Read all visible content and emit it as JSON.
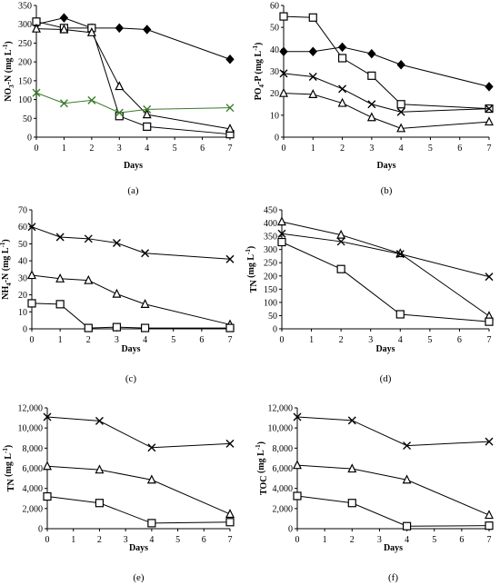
{
  "chart_data": [
    {
      "type": "line",
      "caption": "(a)",
      "xlabel": "Days",
      "ylabel": "NO3-N (mg L-1)",
      "ylabel_main": "NO",
      "ylabel_sub": "3",
      "ylabel_mid": "-N (mg L",
      "ylabel_sup": "-1",
      "ylabel_end": ")",
      "xlim": [
        0,
        7
      ],
      "ylim": [
        0,
        350
      ],
      "xticks": [
        0,
        1,
        2,
        3,
        4,
        5,
        6,
        7
      ],
      "yticks": [
        0,
        50,
        100,
        150,
        200,
        250,
        300,
        350
      ],
      "ytick_labels": [
        "0",
        "50",
        "100",
        "150",
        "200",
        "250",
        "300",
        "350"
      ],
      "series": [
        {
          "marker": "diamond",
          "color": "#000000",
          "x": [
            0,
            1,
            2,
            3,
            4,
            7
          ],
          "y": [
            300,
            317,
            290,
            290,
            286,
            207
          ]
        },
        {
          "marker": "square",
          "color": "#000000",
          "x": [
            0,
            1,
            2,
            3,
            4,
            7
          ],
          "y": [
            307,
            290,
            290,
            56,
            28,
            8
          ]
        },
        {
          "marker": "triangle",
          "color": "#000000",
          "x": [
            0,
            1,
            2,
            3,
            4,
            7
          ],
          "y": [
            288,
            286,
            278,
            135,
            60,
            22
          ]
        },
        {
          "marker": "x",
          "color": "#3a7a28",
          "x": [
            0,
            1,
            2,
            3,
            4,
            7
          ],
          "y": [
            118,
            90,
            98,
            65,
            74,
            78
          ]
        }
      ]
    },
    {
      "type": "line",
      "caption": "(b)",
      "xlabel": "Days",
      "ylabel": "PO4-P (mg L-1)",
      "ylabel_main": "PO",
      "ylabel_sub": "4",
      "ylabel_mid": "-P (mg L",
      "ylabel_sup": "-1",
      "ylabel_end": ")",
      "xlim": [
        0,
        7
      ],
      "ylim": [
        0,
        60
      ],
      "xticks": [
        0,
        1,
        2,
        3,
        4,
        5,
        6,
        7
      ],
      "yticks": [
        0,
        10,
        20,
        30,
        40,
        50,
        60
      ],
      "ytick_labels": [
        "0",
        "10",
        "20",
        "30",
        "40",
        "50",
        "60"
      ],
      "series": [
        {
          "marker": "square",
          "color": "#000000",
          "x": [
            0,
            1,
            2,
            3,
            4,
            7
          ],
          "y": [
            55,
            54.5,
            36,
            28,
            15,
            13
          ]
        },
        {
          "marker": "diamond",
          "color": "#000000",
          "x": [
            0,
            1,
            2,
            3,
            4,
            7
          ],
          "y": [
            39,
            39,
            41,
            38,
            33,
            23
          ]
        },
        {
          "marker": "x",
          "color": "#000000",
          "x": [
            0,
            1,
            2,
            3,
            4,
            7
          ],
          "y": [
            29,
            27.5,
            22,
            15,
            11.5,
            13
          ]
        },
        {
          "marker": "triangle",
          "color": "#000000",
          "x": [
            0,
            1,
            2,
            3,
            4,
            7
          ],
          "y": [
            20,
            19.5,
            15.5,
            9,
            4,
            7
          ]
        }
      ]
    },
    {
      "type": "line",
      "caption": "(c)",
      "xlabel": "Days",
      "ylabel": "NH4-N (mg L-1)",
      "ylabel_main": "NH",
      "ylabel_sub": "4",
      "ylabel_mid": "-N (mg L",
      "ylabel_sup": "-1",
      "ylabel_end": ")",
      "xlim": [
        0,
        7
      ],
      "ylim": [
        0,
        70
      ],
      "xticks": [
        0,
        1,
        2,
        3,
        4,
        5,
        6,
        7
      ],
      "yticks": [
        0,
        10,
        20,
        30,
        40,
        50,
        60,
        70
      ],
      "ytick_labels": [
        "0",
        "10",
        "20",
        "30",
        "40",
        "50",
        "60",
        "70"
      ],
      "series": [
        {
          "marker": "x",
          "color": "#000000",
          "x": [
            0,
            1,
            2,
            3,
            4,
            7
          ],
          "y": [
            60,
            54,
            53,
            50.5,
            44.5,
            41
          ]
        },
        {
          "marker": "triangle",
          "color": "#000000",
          "x": [
            0,
            1,
            2,
            3,
            4,
            7
          ],
          "y": [
            31.5,
            29.5,
            28.5,
            20.5,
            14.5,
            2.5
          ]
        },
        {
          "marker": "square",
          "color": "#000000",
          "x": [
            0,
            1,
            2,
            3,
            4,
            7
          ],
          "y": [
            15,
            14.5,
            0.5,
            1,
            0.5,
            0.5
          ]
        }
      ]
    },
    {
      "type": "line",
      "caption": "(d)",
      "xlabel": "Days",
      "ylabel": "TN (mg L-1)",
      "ylabel_main": "TN",
      "ylabel_sub": "",
      "ylabel_mid": " (mg L",
      "ylabel_sup": "-1",
      "ylabel_end": ")",
      "xlim": [
        0,
        7
      ],
      "ylim": [
        0,
        450
      ],
      "xticks": [
        0,
        1,
        2,
        3,
        4,
        5,
        6,
        7
      ],
      "yticks": [
        0,
        50,
        100,
        150,
        200,
        250,
        300,
        350,
        400,
        450
      ],
      "ytick_labels": [
        "0",
        "50",
        "100",
        "150",
        "200",
        "250",
        "300",
        "350",
        "400",
        "450"
      ],
      "series": [
        {
          "marker": "triangle",
          "color": "#000000",
          "x": [
            0,
            2,
            4,
            7
          ],
          "y": [
            405,
            355,
            285,
            48
          ]
        },
        {
          "marker": "x",
          "color": "#000000",
          "x": [
            0,
            2,
            4,
            7
          ],
          "y": [
            360,
            330,
            283,
            197
          ]
        },
        {
          "marker": "square",
          "color": "#000000",
          "x": [
            0,
            2,
            4,
            7
          ],
          "y": [
            328,
            226,
            55,
            27
          ]
        }
      ]
    },
    {
      "type": "line",
      "caption": "(e)",
      "xlabel": "Days",
      "ylabel": "TN (mg L-1)",
      "ylabel_main": "TN",
      "ylabel_sub": "",
      "ylabel_mid": " (mg L",
      "ylabel_sup": "-1",
      "ylabel_end": ")",
      "xlim": [
        0,
        7
      ],
      "ylim": [
        0,
        12000
      ],
      "xticks": [
        0,
        1,
        2,
        3,
        4,
        5,
        6,
        7
      ],
      "yticks": [
        0,
        2000,
        4000,
        6000,
        8000,
        10000,
        12000
      ],
      "ytick_labels": [
        "0",
        "2,000",
        "4,000",
        "6,000",
        "8,000",
        "10,000",
        "12,000"
      ],
      "series": [
        {
          "marker": "x",
          "color": "#000000",
          "x": [
            0,
            2,
            4,
            7
          ],
          "y": [
            11100,
            10700,
            8050,
            8450
          ]
        },
        {
          "marker": "triangle",
          "color": "#000000",
          "x": [
            0,
            2,
            4,
            7
          ],
          "y": [
            6200,
            5850,
            4850,
            1450
          ]
        },
        {
          "marker": "square",
          "color": "#000000",
          "x": [
            0,
            2,
            4,
            7
          ],
          "y": [
            3200,
            2550,
            550,
            650
          ]
        }
      ]
    },
    {
      "type": "line",
      "caption": "(f)",
      "xlabel": "Days",
      "ylabel": "TOC (mg L-1)",
      "ylabel_main": "TOC",
      "ylabel_sub": "",
      "ylabel_mid": " (mg L",
      "ylabel_sup": "-1",
      "ylabel_end": ")",
      "xlim": [
        0,
        7
      ],
      "ylim": [
        0,
        12000
      ],
      "xticks": [
        0,
        1,
        2,
        3,
        4,
        5,
        6,
        7
      ],
      "yticks": [
        0,
        2000,
        4000,
        6000,
        8000,
        10000,
        12000
      ],
      "ytick_labels": [
        "0",
        "2,000",
        "4,000",
        "6,000",
        "8,000",
        "10,000",
        "12,000"
      ],
      "series": [
        {
          "marker": "x",
          "color": "#000000",
          "x": [
            0,
            2,
            4,
            7
          ],
          "y": [
            11100,
            10750,
            8250,
            8650
          ]
        },
        {
          "marker": "triangle",
          "color": "#000000",
          "x": [
            0,
            2,
            4,
            7
          ],
          "y": [
            6300,
            5950,
            4850,
            1350
          ]
        },
        {
          "marker": "square",
          "color": "#000000",
          "x": [
            0,
            2,
            4,
            7
          ],
          "y": [
            3250,
            2550,
            250,
            300
          ]
        }
      ]
    }
  ]
}
